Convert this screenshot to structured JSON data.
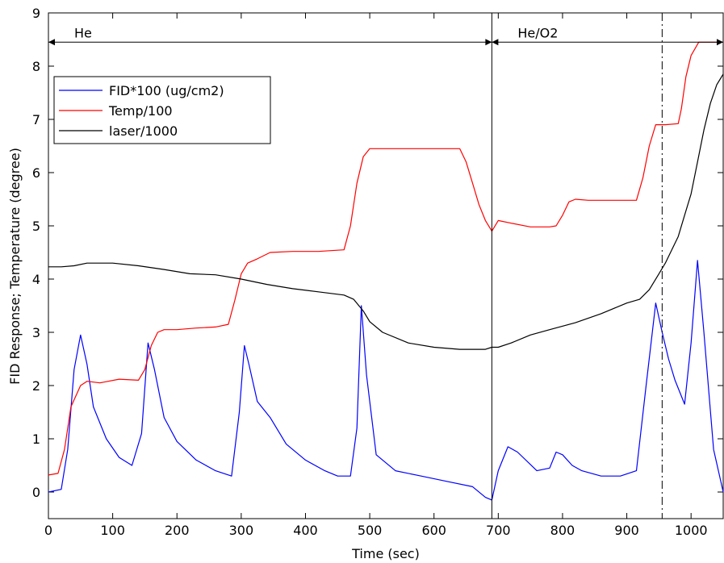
{
  "chart_data": {
    "type": "line",
    "title": "",
    "xlabel": "Time (sec)",
    "ylabel": "FID Response; Temperature (degree)",
    "xlim": [
      0,
      1050
    ],
    "ylim": [
      -0.5,
      9
    ],
    "xticks": [
      0,
      100,
      200,
      300,
      400,
      500,
      600,
      700,
      800,
      900,
      1000
    ],
    "yticks": [
      0,
      1,
      2,
      3,
      4,
      5,
      6,
      7,
      8,
      9
    ],
    "grid": false,
    "legend_position": "top-left",
    "annotations": [
      {
        "text": "He",
        "x_start": 0,
        "x_end": 690,
        "y": 8.45
      },
      {
        "text": "He/O2",
        "x_start": 690,
        "x_end": 1050,
        "y": 8.45
      }
    ],
    "vlines": [
      {
        "x": 690,
        "style": "solid"
      },
      {
        "x": 955,
        "style": "dashdot"
      }
    ],
    "series": [
      {
        "name": "FID*100 (ug/cm2)",
        "color": "#0000ff",
        "x": [
          0,
          20,
          30,
          40,
          50,
          60,
          70,
          90,
          110,
          130,
          145,
          155,
          165,
          180,
          200,
          230,
          260,
          285,
          297,
          305,
          312,
          325,
          345,
          370,
          400,
          430,
          450,
          470,
          480,
          487,
          495,
          510,
          540,
          580,
          620,
          660,
          680,
          690,
          700,
          715,
          730,
          760,
          780,
          790,
          800,
          815,
          830,
          860,
          890,
          915,
          930,
          945,
          955,
          965,
          975,
          990,
          1000,
          1010,
          1020,
          1035,
          1050
        ],
        "y": [
          0.0,
          0.05,
          0.8,
          2.3,
          2.95,
          2.4,
          1.6,
          1.0,
          0.65,
          0.5,
          1.1,
          2.8,
          2.3,
          1.4,
          0.95,
          0.6,
          0.4,
          0.3,
          1.5,
          2.75,
          2.4,
          1.7,
          1.4,
          0.9,
          0.6,
          0.4,
          0.3,
          0.3,
          1.2,
          3.5,
          2.2,
          0.7,
          0.4,
          0.3,
          0.2,
          0.1,
          -0.1,
          -0.15,
          0.4,
          0.85,
          0.75,
          0.4,
          0.45,
          0.75,
          0.7,
          0.5,
          0.4,
          0.3,
          0.3,
          0.4,
          2.0,
          3.55,
          3.0,
          2.5,
          2.1,
          1.65,
          2.8,
          4.35,
          3.0,
          0.8,
          0.0
        ]
      },
      {
        "name": "Temp/100",
        "color": "#ff0000",
        "x": [
          0,
          15,
          25,
          35,
          50,
          60,
          80,
          110,
          140,
          150,
          160,
          170,
          180,
          200,
          230,
          260,
          280,
          290,
          300,
          310,
          325,
          345,
          380,
          420,
          460,
          470,
          480,
          490,
          500,
          540,
          600,
          640,
          650,
          660,
          670,
          680,
          690,
          700,
          720,
          750,
          780,
          790,
          800,
          810,
          820,
          840,
          880,
          915,
          925,
          935,
          945,
          960,
          980,
          985,
          992,
          1000,
          1012,
          1050
        ],
        "y": [
          0.32,
          0.35,
          0.8,
          1.6,
          2.0,
          2.08,
          2.05,
          2.12,
          2.1,
          2.3,
          2.75,
          3.0,
          3.05,
          3.05,
          3.08,
          3.1,
          3.15,
          3.6,
          4.1,
          4.3,
          4.38,
          4.5,
          4.52,
          4.52,
          4.55,
          5.0,
          5.8,
          6.3,
          6.45,
          6.45,
          6.45,
          6.45,
          6.2,
          5.8,
          5.4,
          5.1,
          4.9,
          5.1,
          5.05,
          4.98,
          4.98,
          5.0,
          5.2,
          5.45,
          5.5,
          5.48,
          5.48,
          5.48,
          5.9,
          6.5,
          6.9,
          6.9,
          6.92,
          7.2,
          7.8,
          8.2,
          8.45,
          8.45
        ]
      },
      {
        "name": "laser/1000",
        "color": "#000000",
        "x": [
          0,
          20,
          40,
          60,
          100,
          140,
          180,
          220,
          260,
          300,
          340,
          380,
          420,
          460,
          475,
          490,
          500,
          520,
          560,
          600,
          640,
          680,
          690,
          700,
          720,
          750,
          780,
          820,
          860,
          900,
          920,
          935,
          950,
          960,
          970,
          980,
          990,
          1000,
          1010,
          1020,
          1030,
          1040,
          1050
        ],
        "y": [
          4.23,
          4.23,
          4.25,
          4.3,
          4.3,
          4.25,
          4.18,
          4.1,
          4.08,
          4.0,
          3.9,
          3.82,
          3.76,
          3.7,
          3.62,
          3.4,
          3.2,
          3.0,
          2.8,
          2.72,
          2.68,
          2.68,
          2.72,
          2.72,
          2.8,
          2.95,
          3.05,
          3.18,
          3.35,
          3.55,
          3.62,
          3.8,
          4.1,
          4.3,
          4.55,
          4.8,
          5.2,
          5.6,
          6.2,
          6.8,
          7.3,
          7.65,
          7.85
        ]
      }
    ]
  }
}
